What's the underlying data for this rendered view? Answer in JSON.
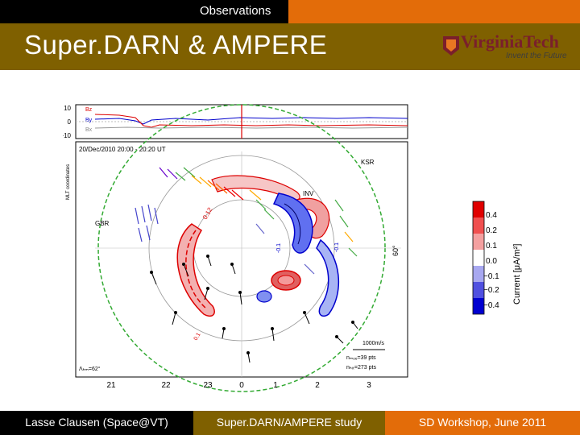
{
  "header": {
    "section": "Observations",
    "title": "Super.DARN & AMPERE"
  },
  "logo": {
    "brand": "VirginiaTech",
    "tagline": "Invent the Future"
  },
  "plot": {
    "imf_ticks": [
      "10",
      "0",
      "−10"
    ],
    "imf_labels": [
      "Bz",
      "By",
      "Bx"
    ],
    "ylabel": "MLT coordinates",
    "date_label": "20/Dec/2010 20:00 - 20:20 UT",
    "radar_labels": [
      "KSR",
      "INV",
      "GBR"
    ],
    "lat_label": "60°",
    "contour_labels": [
      "0.12",
      "-0.1",
      "-0.1",
      "0.1"
    ],
    "mlt_ticks": [
      "21",
      "22",
      "23",
      "0",
      "1",
      "2",
      "3"
    ],
    "vector_scale": "1000m/s",
    "n_mod": "nₘₒₑ=39 pts",
    "n_fit": "nₕᵢₜ=273 pts",
    "lambda_hm": "Λₕₘ=62°"
  },
  "colorbar": {
    "ticks": [
      "0.4",
      "0.2",
      "0.1",
      "0.0",
      "−0.1",
      "−0.2",
      "−0.4"
    ],
    "label": "Current [μA/m²]",
    "colors": [
      "#e00000",
      "#f05050",
      "#f4a0a0",
      "#ffffff",
      "#a8a8f0",
      "#5050e0",
      "#0000d0"
    ]
  },
  "footer": {
    "left": "Lasse Clausen (Space@VT)",
    "center": "Super.DARN/AMPERE study",
    "right": "SD Workshop, June 2011"
  }
}
